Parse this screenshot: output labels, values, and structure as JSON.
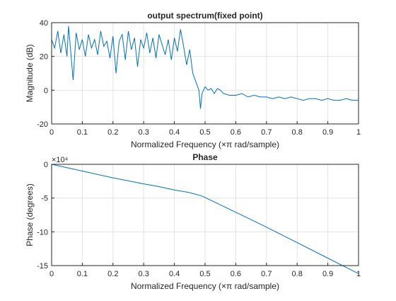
{
  "colors": {
    "line": "#0072BD",
    "axes": "#262626",
    "grid": "#e3e3e3",
    "background": "#ffffff"
  },
  "chart_data": [
    {
      "type": "line",
      "title": "output spectrum(fixed point)",
      "xlabel": "Normalized Frequency  (×π rad/sample)",
      "ylabel": "Magnitude (dB)",
      "xlim": [
        0,
        1
      ],
      "ylim": [
        -20,
        40
      ],
      "xticks": [
        0,
        0.1,
        0.2,
        0.3,
        0.4,
        0.5,
        0.6,
        0.7,
        0.8,
        0.9,
        1
      ],
      "xtick_labels": [
        "0",
        "0.1",
        "0.2",
        "0.3",
        "0.4",
        "0.5",
        "0.6",
        "0.7",
        "0.8",
        "0.9",
        "1"
      ],
      "yticks": [
        -20,
        0,
        20,
        40
      ],
      "ytick_labels": [
        "-20",
        "0",
        "20",
        "40"
      ],
      "grid": true,
      "series": [
        {
          "x": [
            0,
            0.01,
            0.02,
            0.03,
            0.04,
            0.05,
            0.055,
            0.06,
            0.07,
            0.08,
            0.09,
            0.1,
            0.11,
            0.12,
            0.13,
            0.14,
            0.15,
            0.16,
            0.17,
            0.18,
            0.19,
            0.2,
            0.21,
            0.22,
            0.23,
            0.24,
            0.25,
            0.26,
            0.27,
            0.28,
            0.29,
            0.3,
            0.31,
            0.32,
            0.33,
            0.34,
            0.35,
            0.36,
            0.37,
            0.38,
            0.39,
            0.4,
            0.41,
            0.42,
            0.43,
            0.44,
            0.45,
            0.46,
            0.47,
            0.48,
            0.485,
            0.49,
            0.5,
            0.51,
            0.52,
            0.53,
            0.54,
            0.55,
            0.56,
            0.58,
            0.6,
            0.62,
            0.64,
            0.66,
            0.68,
            0.7,
            0.72,
            0.74,
            0.76,
            0.78,
            0.8,
            0.82,
            0.84,
            0.86,
            0.88,
            0.9,
            0.92,
            0.94,
            0.96,
            0.98,
            1
          ],
          "y": [
            30,
            25,
            35,
            22,
            33,
            20,
            38,
            28,
            6,
            34,
            24,
            30,
            20,
            33,
            25,
            30,
            21,
            35,
            26,
            29,
            19,
            32,
            10,
            29,
            33,
            18,
            35,
            24,
            31,
            14,
            30,
            25,
            34,
            22,
            31,
            19,
            33,
            27,
            21,
            30,
            18,
            31,
            23,
            36,
            26,
            15,
            24,
            10,
            5,
            0,
            -11,
            -2,
            2,
            0,
            1,
            -2,
            1,
            0,
            -2,
            -3,
            -3,
            -2,
            -4,
            -3,
            -4,
            -4,
            -5,
            -4,
            -5,
            -4,
            -5,
            -6,
            -5,
            -5,
            -6,
            -5,
            -6,
            -6,
            -5,
            -6,
            -6
          ]
        }
      ]
    },
    {
      "type": "line",
      "title": "Phase",
      "xlabel": "Normalized Frequency  (×π rad/sample)",
      "ylabel": "Phase (degrees)",
      "xlim": [
        0,
        1
      ],
      "ylim": [
        -15,
        0
      ],
      "exponent_label": "×10⁴",
      "xticks": [
        0,
        0.1,
        0.2,
        0.3,
        0.4,
        0.5,
        0.6,
        0.7,
        0.8,
        0.9,
        1
      ],
      "xtick_labels": [
        "0",
        "0.1",
        "0.2",
        "0.3",
        "0.4",
        "0.5",
        "0.6",
        "0.7",
        "0.8",
        "0.9",
        "1"
      ],
      "yticks": [
        -15,
        -10,
        -5,
        0
      ],
      "ytick_labels": [
        "-15",
        "-10",
        "-5",
        "0"
      ],
      "grid": true,
      "series": [
        {
          "x": [
            0,
            0.1,
            0.2,
            0.3,
            0.35,
            0.4,
            0.45,
            0.49,
            0.6,
            0.7,
            0.8,
            0.9,
            1
          ],
          "y": [
            0,
            -1.0,
            -2.0,
            -2.9,
            -3.3,
            -3.8,
            -4.2,
            -4.7,
            -7.1,
            -9.3,
            -11.6,
            -13.9,
            -16.2
          ]
        }
      ]
    }
  ]
}
